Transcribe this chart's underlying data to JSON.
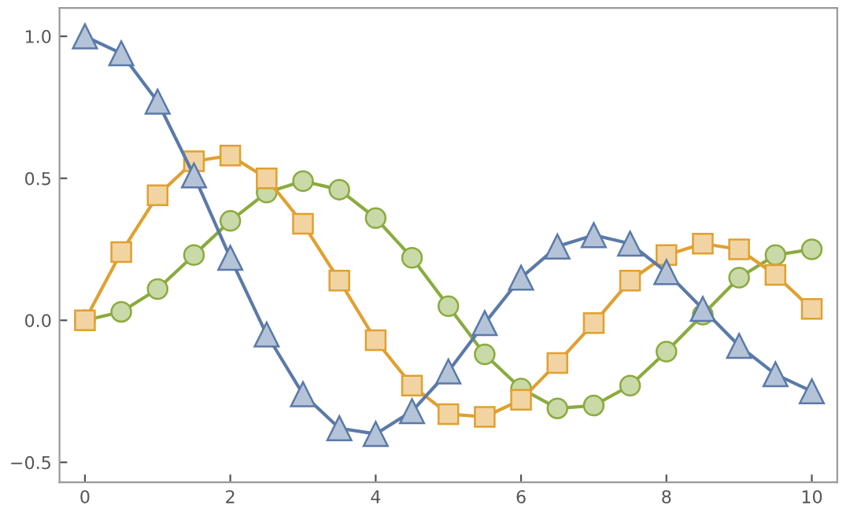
{
  "chart_data": {
    "type": "line",
    "x": [
      0,
      0.5,
      1,
      1.5,
      2,
      2.5,
      3,
      3.5,
      4,
      4.5,
      5,
      5.5,
      6,
      6.5,
      7,
      7.5,
      8,
      8.5,
      9,
      9.5,
      10
    ],
    "series": [
      {
        "color": "#8aab3e",
        "marker": "circle",
        "values": [
          0,
          0.03,
          0.11,
          0.23,
          0.35,
          0.45,
          0.49,
          0.46,
          0.36,
          0.22,
          0.05,
          -0.12,
          -0.24,
          -0.31,
          -0.3,
          -0.23,
          -0.11,
          0.02,
          0.15,
          0.23,
          0.25
        ]
      },
      {
        "color": "#e0a030",
        "marker": "square",
        "values": [
          0,
          0.24,
          0.44,
          0.56,
          0.58,
          0.5,
          0.34,
          0.14,
          -0.07,
          -0.23,
          -0.33,
          -0.34,
          -0.28,
          -0.15,
          -0.01,
          0.14,
          0.23,
          0.27,
          0.25,
          0.16,
          0.04
        ]
      },
      {
        "color": "#5a7aa8",
        "marker": "triangle",
        "values": [
          1.0,
          0.94,
          0.77,
          0.51,
          0.22,
          -0.05,
          -0.26,
          -0.38,
          -0.4,
          -0.32,
          -0.18,
          -0.01,
          0.15,
          0.26,
          0.3,
          0.27,
          0.17,
          0.04,
          -0.09,
          -0.19,
          -0.25
        ]
      }
    ],
    "xlim": [
      -0.35,
      10.35
    ],
    "xticks": [
      0,
      2,
      4,
      6,
      8,
      10
    ],
    "ylim": [
      -0.57,
      1.1
    ],
    "yticks": [
      {
        "value": -0.5,
        "label": "−0.5"
      },
      {
        "value": 0,
        "label": "0.0"
      },
      {
        "value": 0.5,
        "label": "0.5"
      },
      {
        "value": 1.0,
        "label": "1.0"
      }
    ],
    "grid": false,
    "legend": false,
    "line_style": "solid"
  }
}
